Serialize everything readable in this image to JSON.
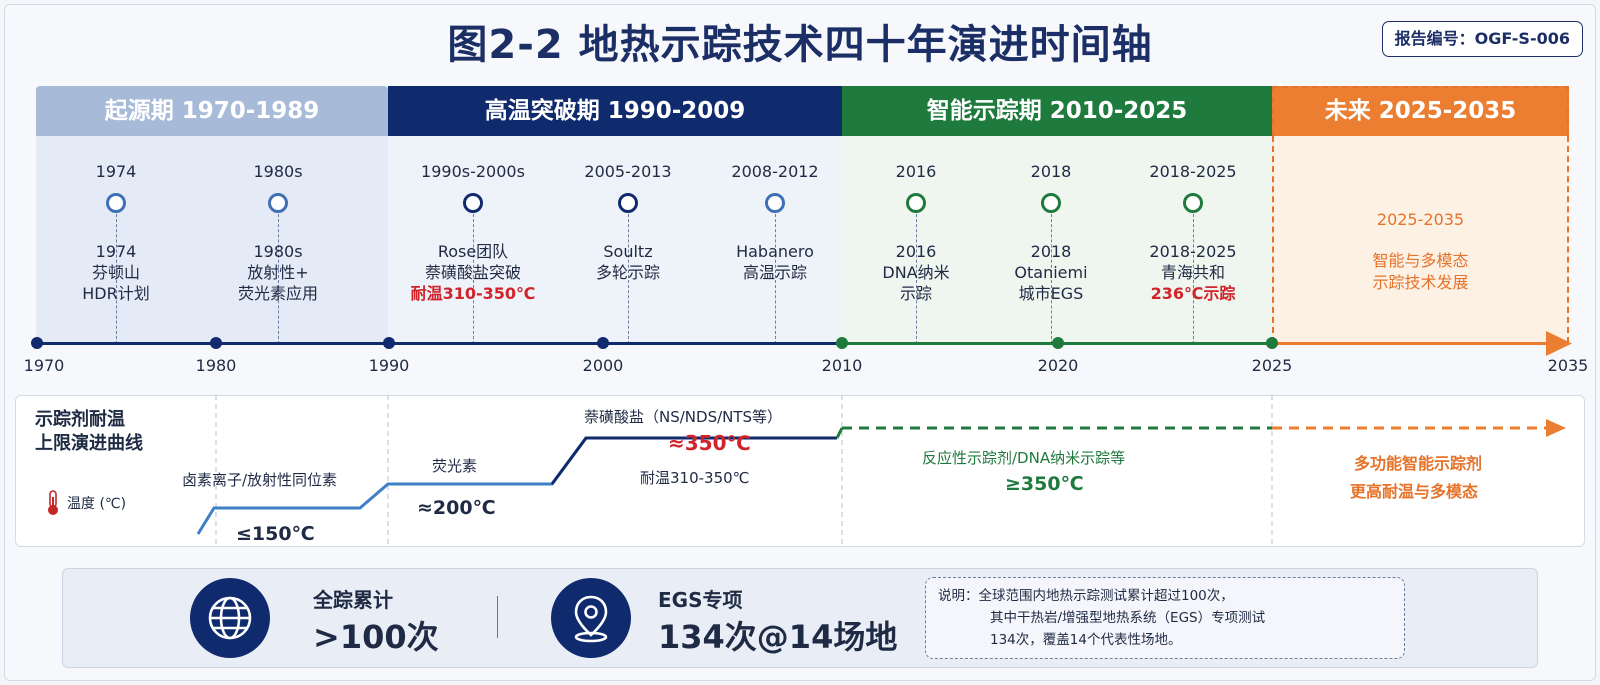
{
  "title": "图2-2  地热示踪技术四十年演进时间轴",
  "report_no": "报告编号：OGF-S-006",
  "periods": [
    {
      "label": "起源期 1970-1989",
      "color": "#a7bbd9"
    },
    {
      "label": "高温突破期 1990-2009",
      "color": "#102a6e"
    },
    {
      "label": "智能示踪期 2010-2025",
      "color": "#1f7a3d"
    },
    {
      "label": "未来 2025-2035",
      "color": "#eb7e30"
    }
  ],
  "events": [
    {
      "year": "1974",
      "lines": [
        "1974",
        "芬顿山",
        "HDR计划"
      ],
      "red": ""
    },
    {
      "year": "1980s",
      "lines": [
        "1980s",
        "放射性+",
        "荧光素应用"
      ],
      "red": ""
    },
    {
      "year": "1990s-2000s",
      "lines": [
        "Rose团队",
        "萘磺酸盐突破"
      ],
      "red": "耐温310-350℃"
    },
    {
      "year": "2005-2013",
      "lines": [
        "Soultz",
        "多轮示踪"
      ],
      "red": ""
    },
    {
      "year": "2008-2012",
      "lines": [
        "Habanero",
        "高温示踪"
      ],
      "red": ""
    },
    {
      "year": "2016",
      "lines": [
        "2016",
        "DNA纳米",
        "示踪"
      ],
      "red": ""
    },
    {
      "year": "2018",
      "lines": [
        "2018",
        "Otaniemi",
        "城市EGS"
      ],
      "red": ""
    },
    {
      "year": "2018-2025",
      "lines": [
        "2018-2025",
        "青海共和"
      ],
      "red": "236℃示踪"
    }
  ],
  "future": {
    "years": "2025-2035",
    "lines": [
      "智能与多模态",
      "示踪技术发展"
    ]
  },
  "axis": {
    "ticks": [
      "1970",
      "1980",
      "1990",
      "2000",
      "2010",
      "2020",
      "2025",
      "2035"
    ]
  },
  "curve": {
    "title_lines": [
      "示踪剂耐温",
      "上限演进曲线"
    ],
    "legend": "温度 (℃)",
    "labels": {
      "halogen": "卤素离子/放射性同位素",
      "halogen_value": "≤150℃",
      "fluorescein": "荧光素",
      "fluorescein_value": "≈200℃",
      "naphthalene": "萘磺酸盐（NS/NDS/NTS等）",
      "naphthalene_value": "≈350℃",
      "naphthalene_sub": "耐温310-350℃",
      "reactive": "反应性示踪剂/DNA纳米示踪等",
      "reactive_value": "≥350℃",
      "future_line1": "多功能智能示踪剂",
      "future_line2": "更高耐温与多模态"
    }
  },
  "stats": [
    {
      "label": "全踪累计",
      "value": ">100次",
      "icon": "globe-icon"
    },
    {
      "label": "EGS专项",
      "value": "134次@14场地",
      "icon": "location-pin-icon"
    }
  ],
  "note": {
    "line1": "说明：全球范围内地热示踪测试累计超过100次，",
    "line2": "其中干热岩/增强型地热系统（EGS）专项测试",
    "line3": "134次，覆盖14个代表性场地。"
  }
}
